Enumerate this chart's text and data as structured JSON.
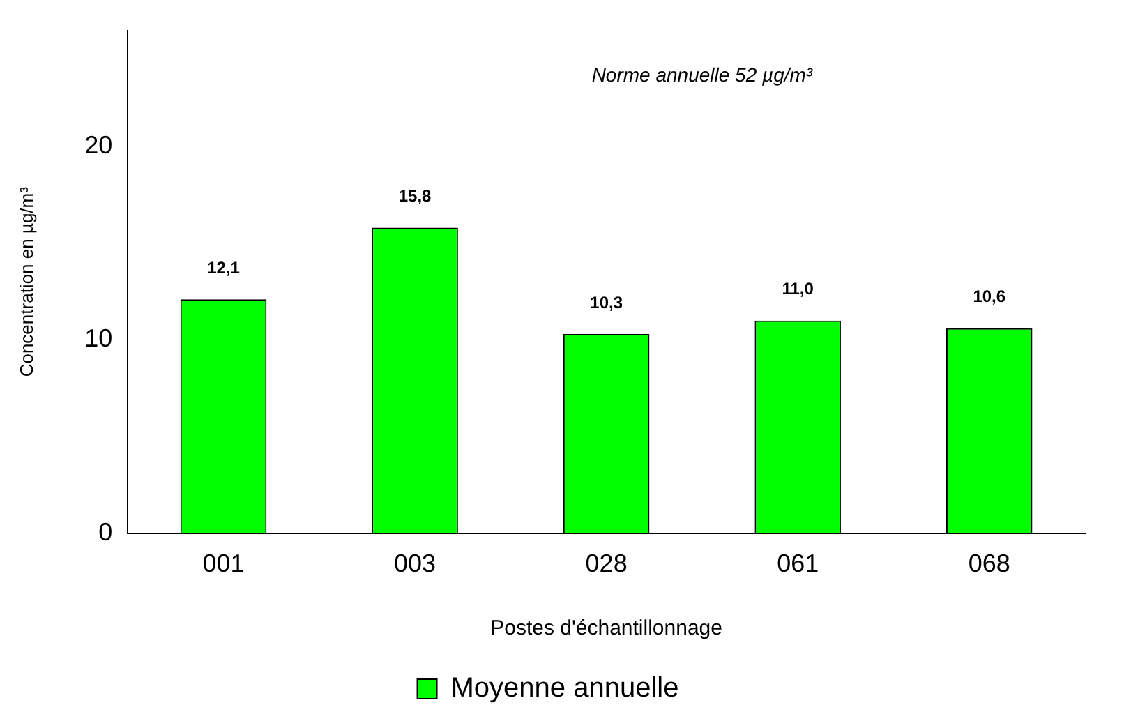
{
  "chart_data": {
    "type": "bar",
    "categories": [
      "001",
      "003",
      "028",
      "061",
      "068"
    ],
    "series": [
      {
        "name": "Moyenne annuelle",
        "color": "#00ff00",
        "values": [
          12.1,
          15.8,
          10.3,
          11.0,
          10.6
        ],
        "value_labels": [
          "12,1",
          "15,8",
          "10,3",
          "11,0",
          "10,6"
        ]
      }
    ],
    "ylim": [
      0,
      26
    ],
    "yticks": [
      0,
      10,
      20
    ],
    "xlabel": "Postes d'échantillonnage",
    "ylabel": "Concentration en µg/m³",
    "annotations": [
      "Norme annuelle 52 µg/m³"
    ],
    "legend": "bottom",
    "grid": false
  }
}
